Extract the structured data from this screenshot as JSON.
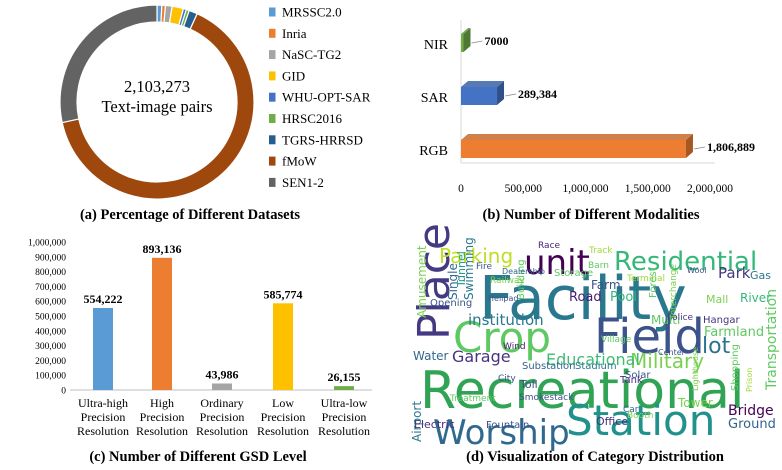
{
  "panel_a": {
    "center_value": "2,103,273",
    "center_label": "Text-image pairs",
    "caption": "(a) Percentage of Different Datasets",
    "chart_data": {
      "type": "pie",
      "series": [
        {
          "name": "MRSSC2.0",
          "value": 0.8,
          "color": "#5b9bd5"
        },
        {
          "name": "Inria",
          "value": 0.6,
          "color": "#ed7d31"
        },
        {
          "name": "NaSC-TG2",
          "value": 1.1,
          "color": "#a5a5a5"
        },
        {
          "name": "GID",
          "value": 1.9,
          "color": "#ffc000"
        },
        {
          "name": "WHU-OPT-SAR",
          "value": 0.5,
          "color": "#4472c4"
        },
        {
          "name": "HRSC2016",
          "value": 0.5,
          "color": "#70ad47"
        },
        {
          "name": "TGRS-HRRSD",
          "value": 1.4,
          "color": "#255e91"
        },
        {
          "name": "fMoW",
          "value": 64.8,
          "color": "#9e480e"
        },
        {
          "name": "SEN1-2",
          "value": 28.4,
          "color": "#636363"
        }
      ]
    }
  },
  "panel_b": {
    "caption": "(b) Number of Different Modalities",
    "chart_data": {
      "type": "bar",
      "orientation": "horizontal",
      "categories": [
        "NIR",
        "SAR",
        "RGB"
      ],
      "values": [
        7000,
        289384,
        1806889
      ],
      "value_labels": [
        "7000",
        "289,384",
        "1,806,889"
      ],
      "colors": [
        "#70ad47",
        "#4472c4",
        "#ed7d31"
      ],
      "xlim": [
        0,
        2000000
      ],
      "xticks": [
        "0",
        "500,000",
        "1,000,000",
        "1,500,000",
        "2,000,000"
      ]
    }
  },
  "panel_c": {
    "caption": "(c) Number of Different GSD Level",
    "chart_data": {
      "type": "bar",
      "categories": [
        [
          "Ultra-high",
          "Precision",
          "Resolution"
        ],
        [
          "High",
          "Precision",
          "Resolution"
        ],
        [
          "Ordinary",
          "Precision",
          "Resolution"
        ],
        [
          "Low",
          "Precision",
          "Resolution"
        ],
        [
          "Ultra-low",
          "Precision",
          "Resolution"
        ]
      ],
      "values": [
        554222,
        893136,
        43986,
        585774,
        26155
      ],
      "value_labels": [
        "554,222",
        "893,136",
        "43,986",
        "585,774",
        "26,155"
      ],
      "colors": [
        "#5b9bd5",
        "#ed7d31",
        "#a5a5a5",
        "#ffc000",
        "#70ad47"
      ],
      "ylim": [
        0,
        1000000
      ],
      "yticks": [
        "0",
        "100,000",
        "200,000",
        "300,000",
        "400,000",
        "500,000",
        "600,000",
        "700,000",
        "800,000",
        "900,000",
        "1,000,000"
      ]
    }
  },
  "panel_d": {
    "caption": "(d) Visualization of Category Distribution",
    "words": [
      {
        "text": "Recreational",
        "color": "#31a354",
        "rot": 0
      },
      {
        "text": "Facility",
        "color": "#2a788e",
        "rot": 0
      },
      {
        "text": "Station",
        "color": "#21918c",
        "rot": 0
      },
      {
        "text": "Crop",
        "color": "#5ec962",
        "rot": 0
      },
      {
        "text": "Field",
        "color": "#3b528b",
        "rot": 0
      },
      {
        "text": "Worship",
        "color": "#31688e",
        "rot": 0
      },
      {
        "text": "Place",
        "color": "#443983",
        "rot": 270
      },
      {
        "text": "unit",
        "color": "#440154",
        "rot": 0
      },
      {
        "text": "Residential",
        "color": "#35b779",
        "rot": 0
      },
      {
        "text": "Parking",
        "color": "#bddf26",
        "rot": 0
      },
      {
        "text": "Military",
        "color": "#7ad151",
        "rot": 0
      },
      {
        "text": "lot",
        "color": "#2c728e",
        "rot": 0
      },
      {
        "text": "Garage",
        "color": "#46327e",
        "rot": 0
      },
      {
        "text": "Educational",
        "color": "#3fbc73",
        "rot": 0
      },
      {
        "text": "institution",
        "color": "#2a788e",
        "rot": 0
      },
      {
        "text": "Amusement",
        "color": "#7ad151",
        "rot": 270
      },
      {
        "text": "Airport",
        "color": "#2a788e",
        "rot": 270
      },
      {
        "text": "Transportation",
        "color": "#5ec962",
        "rot": 270
      },
      {
        "text": "Bridge",
        "color": "#440154",
        "rot": 0
      },
      {
        "text": "Ground",
        "color": "#33638d",
        "rot": 0
      },
      {
        "text": "Farmland",
        "color": "#5ec962",
        "rot": 0
      },
      {
        "text": "Park",
        "color": "#443983",
        "rot": 0
      },
      {
        "text": "Gas",
        "color": "#2a788e",
        "rot": 0
      },
      {
        "text": "Farm",
        "color": "#3b528b",
        "rot": 0
      },
      {
        "text": "Pool",
        "color": "#35b779",
        "rot": 0
      },
      {
        "text": "Road",
        "color": "#482173",
        "rot": 0
      },
      {
        "text": "Swimming",
        "color": "#2a788e",
        "rot": 270
      },
      {
        "text": "Single",
        "color": "#31688e",
        "rot": 270
      },
      {
        "text": "Tunnel",
        "color": "#1f9e89",
        "rot": 270
      },
      {
        "text": "Water",
        "color": "#31688e",
        "rot": 0
      },
      {
        "text": "Multi",
        "color": "#5ec962",
        "rot": 0
      },
      {
        "text": "Mall",
        "color": "#7ad151",
        "rot": 0
      },
      {
        "text": "River",
        "color": "#35b779",
        "rot": 0
      },
      {
        "text": "Hangar",
        "color": "#46327e",
        "rot": 0
      },
      {
        "text": "Police",
        "color": "#443983",
        "rot": 0
      },
      {
        "text": "Substation",
        "color": "#33638d",
        "rot": 0
      },
      {
        "text": "Stadium",
        "color": "#2a788e",
        "rot": 0
      },
      {
        "text": "Solar",
        "color": "#3b528b",
        "rot": 0
      },
      {
        "text": "Tower",
        "color": "#7ad151",
        "rot": 0
      },
      {
        "text": "Fountain",
        "color": "#3b528b",
        "rot": 0
      },
      {
        "text": "Electric",
        "color": "#472d7b",
        "rot": 0
      },
      {
        "text": "Office",
        "color": "#46327e",
        "rot": 0
      },
      {
        "text": "Tank",
        "color": "#472d7b",
        "rot": 0
      },
      {
        "text": "Toll",
        "color": "#3b528b",
        "rot": 0
      },
      {
        "text": "Shopping",
        "color": "#5ec962",
        "rot": 270
      },
      {
        "text": "Opening",
        "color": "#3b528b",
        "rot": 0
      },
      {
        "text": "Storage",
        "color": "#5ec962",
        "rot": 0
      },
      {
        "text": "Race",
        "color": "#482173",
        "rot": 0
      },
      {
        "text": "Track",
        "color": "#a0da39",
        "rot": 0
      },
      {
        "text": "Barn",
        "color": "#5ec962",
        "rot": 0
      },
      {
        "text": "Railway",
        "color": "#7ad151",
        "rot": 0
      },
      {
        "text": "Fire",
        "color": "#3b528b",
        "rot": 0
      },
      {
        "text": "Building",
        "color": "#5ec962",
        "rot": 270
      },
      {
        "text": "Village",
        "color": "#5ec962",
        "rot": 0
      },
      {
        "text": "City",
        "color": "#3b528b",
        "rot": 0
      },
      {
        "text": "Car",
        "color": "#31688e",
        "rot": 0
      },
      {
        "text": "Smokestack",
        "color": "#3b528b",
        "rot": 0
      },
      {
        "text": "Terminal",
        "color": "#a0da39",
        "rot": 0
      },
      {
        "text": "Interchange",
        "color": "#7ad151",
        "rot": 270
      },
      {
        "text": "Forest",
        "color": "#5ec962",
        "rot": 270
      },
      {
        "text": "Wind",
        "color": "#482173",
        "rot": 0
      },
      {
        "text": "Treatment",
        "color": "#5ec962",
        "rot": 0
      },
      {
        "text": "Booth",
        "color": "#7ad151",
        "rot": 0
      },
      {
        "text": "Dealership",
        "color": "#31688e",
        "rot": 0
      },
      {
        "text": "Helipad",
        "color": "#3b528b",
        "rot": 0
      },
      {
        "text": "Lighthouse",
        "color": "#7ad151",
        "rot": 270
      },
      {
        "text": "Prison",
        "color": "#a0da39",
        "rot": 270
      },
      {
        "text": "Wool",
        "color": "#3b528b",
        "rot": 0
      },
      {
        "text": "Center",
        "color": "#3b528b",
        "rot": 0
      }
    ]
  }
}
